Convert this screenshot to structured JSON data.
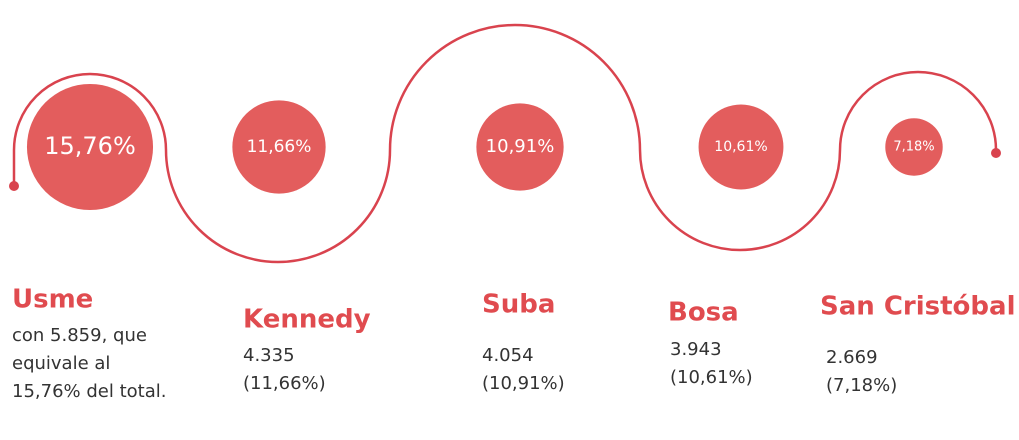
{
  "chart_data": {
    "type": "bubble",
    "categories": [
      "Usme",
      "Kennedy",
      "Suba",
      "Bosa",
      "San Cristóbal"
    ],
    "values": [
      15.76,
      11.66,
      10.91,
      10.61,
      7.18
    ],
    "value_labels": [
      "15,76%",
      "11,66%",
      "10,91%",
      "10,61%",
      "7,18%"
    ],
    "details": [
      [
        "con 5.859, que",
        "equivale al",
        "15,76% del total."
      ],
      [
        "4.335",
        "(11,66%)"
      ],
      [
        "4.054",
        "(10,91%)"
      ],
      [
        "3.943",
        "(10,61%)"
      ],
      [
        "2.669",
        "(7,18%)"
      ]
    ],
    "color": "#e35d5d"
  }
}
